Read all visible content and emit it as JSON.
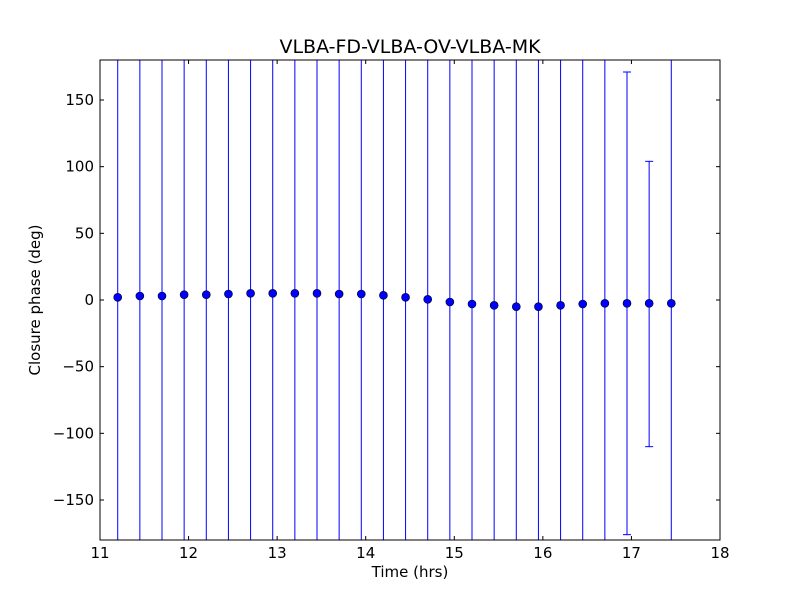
{
  "chart_data": {
    "type": "scatter",
    "title": "VLBA-FD-VLBA-OV-VLBA-MK",
    "xlabel": "Time (hrs)",
    "ylabel": "Closure phase (deg)",
    "xlim": [
      11,
      18
    ],
    "ylim": [
      -180,
      180
    ],
    "xticks": [
      11,
      12,
      13,
      14,
      15,
      16,
      17,
      18
    ],
    "yticks": [
      -150,
      -100,
      -50,
      0,
      50,
      100,
      150
    ],
    "ytick_labels": [
      "−150",
      "−100",
      "−50",
      "0",
      "50",
      "100",
      "150"
    ],
    "grid": false,
    "marker_color": "#0000ff",
    "errorbar_color": "#0000ff",
    "series": [
      {
        "x": [
          11.2,
          11.45,
          11.7,
          11.95,
          12.2,
          12.45,
          12.7,
          12.95,
          13.2,
          13.45,
          13.7,
          13.95,
          14.2,
          14.45,
          14.7,
          14.95,
          15.2,
          15.45,
          15.7,
          15.95,
          16.2,
          16.45,
          16.7,
          16.95,
          17.2,
          17.45
        ],
        "y": [
          2,
          3,
          3,
          4,
          4,
          4.5,
          5,
          5,
          5,
          5,
          4.5,
          4.5,
          3.5,
          2,
          0.5,
          -1.5,
          -3,
          -4,
          -5,
          -5,
          -4,
          -3,
          -2.5,
          -2.5,
          -2.5,
          -2.5
        ],
        "y_low": [
          -180,
          -180,
          -180,
          -180,
          -180,
          -180,
          -180,
          -180,
          -180,
          -180,
          -180,
          -180,
          -180,
          -180,
          -180,
          -180,
          -180,
          -180,
          -180,
          -180,
          -180,
          -180,
          -180,
          -176,
          -110,
          -180
        ],
        "y_high": [
          180,
          180,
          180,
          180,
          180,
          180,
          180,
          180,
          180,
          180,
          180,
          180,
          180,
          180,
          180,
          180,
          180,
          180,
          180,
          180,
          180,
          180,
          180,
          171,
          104,
          180
        ]
      }
    ]
  }
}
